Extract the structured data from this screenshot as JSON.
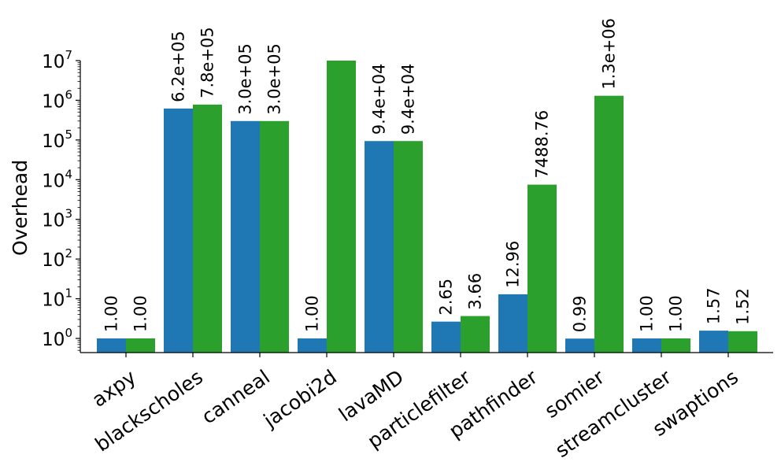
{
  "chart_data": {
    "type": "bar",
    "yscale": "log",
    "ylabel": "Overhead",
    "xlabel": "",
    "title": "",
    "ylim": [
      0.4,
      15000000
    ],
    "yticks": [
      1,
      10,
      100,
      1000,
      10000,
      100000,
      1000000,
      10000000
    ],
    "ytick_labels": [
      {
        "base": "10",
        "exp": "0"
      },
      {
        "base": "10",
        "exp": "1"
      },
      {
        "base": "10",
        "exp": "2"
      },
      {
        "base": "10",
        "exp": "3"
      },
      {
        "base": "10",
        "exp": "4"
      },
      {
        "base": "10",
        "exp": "5"
      },
      {
        "base": "10",
        "exp": "6"
      },
      {
        "base": "10",
        "exp": "7"
      }
    ],
    "categories": [
      "axpy",
      "blackscholes",
      "canneal",
      "jacobi2d",
      "lavaMD",
      "particlefilter",
      "pathfinder",
      "somier",
      "streamcluster",
      "swaptions"
    ],
    "series": [
      {
        "color": "#1f77b4",
        "values": [
          1.0,
          620000,
          300000,
          1.0,
          94000,
          2.65,
          12.96,
          0.99,
          1.0,
          1.57
        ],
        "labels": [
          "1.00",
          "6.2e+05",
          "3.0e+05",
          "1.00",
          "9.4e+04",
          "2.65",
          "12.96",
          "0.99",
          "1.00",
          "1.57"
        ]
      },
      {
        "color": "#2ca02c",
        "values": [
          1.0,
          780000,
          300000,
          10000000,
          94000,
          3.66,
          7488.76,
          1300000,
          1.0,
          1.52
        ],
        "labels": [
          "1.00",
          "7.8e+05",
          "3.0e+05",
          "",
          "9.4e+04",
          "3.66",
          "7488.76",
          "1.3e+06",
          "1.00",
          "1.52"
        ]
      }
    ],
    "grid": false,
    "legend": "none"
  }
}
